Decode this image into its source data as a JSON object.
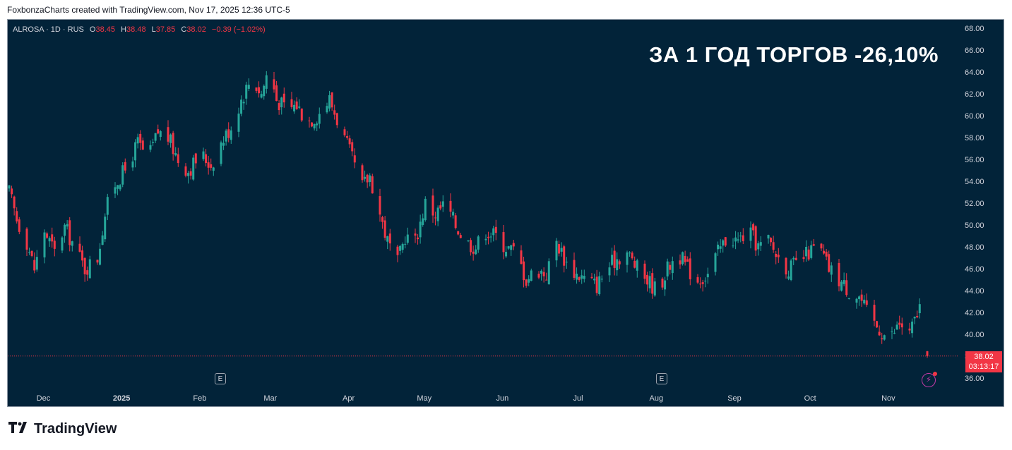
{
  "header": {
    "credit": "FoxbonzaCharts created with TradingView.com, Nov 17, 2025 12:36 UTC-5"
  },
  "legend": {
    "symbol": "ALROSA · 1D · RUS",
    "o_label": "O",
    "o_value": "38.45",
    "h_label": "H",
    "h_value": "38.48",
    "l_label": "L",
    "l_value": "37.85",
    "c_label": "C",
    "c_value": "38.02",
    "change": "−0.39 (−1.02%)"
  },
  "headline": "ЗА 1 ГОД ТОРГОВ -26,10%",
  "price_tag": {
    "price": "38.02",
    "countdown": "03:13:17"
  },
  "events": [
    {
      "label": "E",
      "near": "Mar"
    },
    {
      "label": "E",
      "near": "Aug"
    }
  ],
  "footer": {
    "brand": "TradingView"
  },
  "colors": {
    "up": "#26a69a",
    "down": "#f23645",
    "background": "#022339",
    "text": "#d1d4dc"
  },
  "chart_data": {
    "type": "candlestick",
    "x_ticks": [
      "Dec",
      "2025",
      "Feb",
      "Mar",
      "Apr",
      "May",
      "Jun",
      "Jul",
      "Aug",
      "Sep",
      "Oct",
      "Nov"
    ],
    "y_ticks": [
      "68.00",
      "66.00",
      "64.00",
      "62.00",
      "60.00",
      "58.00",
      "56.00",
      "54.00",
      "52.00",
      "50.00",
      "48.00",
      "46.00",
      "44.00",
      "42.00",
      "40.00",
      "38.00",
      "36.00"
    ],
    "ylim": [
      36,
      68
    ],
    "last_price": 38.02,
    "close_path": [
      [
        "2024-11-18",
        53.0
      ],
      [
        "2024-11-21",
        50.5
      ],
      [
        "2024-11-25",
        48.5
      ],
      [
        "2024-11-28",
        46.0
      ],
      [
        "2024-12-02",
        49.5
      ],
      [
        "2024-12-06",
        47.5
      ],
      [
        "2024-12-10",
        49.8
      ],
      [
        "2024-12-14",
        48.0
      ],
      [
        "2024-12-18",
        46.0
      ],
      [
        "2024-12-23",
        47.0
      ],
      [
        "2024-12-26",
        51.0
      ],
      [
        "2024-12-29",
        53.5
      ],
      [
        "2025-01-03",
        55.0
      ],
      [
        "2025-01-08",
        57.5
      ],
      [
        "2025-01-12",
        56.0
      ],
      [
        "2025-01-16",
        58.5
      ],
      [
        "2025-01-20",
        58.0
      ],
      [
        "2025-01-24",
        56.0
      ],
      [
        "2025-01-28",
        55.0
      ],
      [
        "2025-02-02",
        56.5
      ],
      [
        "2025-02-06",
        55.5
      ],
      [
        "2025-02-10",
        57.5
      ],
      [
        "2025-02-14",
        59.0
      ],
      [
        "2025-02-18",
        61.5
      ],
      [
        "2025-02-22",
        63.5
      ],
      [
        "2025-02-26",
        62.0
      ],
      [
        "2025-03-01",
        64.5
      ],
      [
        "2025-03-04",
        61.5
      ],
      [
        "2025-03-08",
        60.5
      ],
      [
        "2025-03-12",
        61.0
      ],
      [
        "2025-03-16",
        59.5
      ],
      [
        "2025-03-20",
        60.0
      ],
      [
        "2025-03-25",
        61.5
      ],
      [
        "2025-03-30",
        58.5
      ],
      [
        "2025-04-03",
        56.0
      ],
      [
        "2025-04-07",
        53.5
      ],
      [
        "2025-04-10",
        54.5
      ],
      [
        "2025-04-14",
        51.0
      ],
      [
        "2025-04-17",
        48.5
      ],
      [
        "2025-04-21",
        46.5
      ],
      [
        "2025-04-24",
        49.0
      ],
      [
        "2025-04-28",
        48.5
      ],
      [
        "2025-05-02",
        52.0
      ],
      [
        "2025-05-06",
        51.0
      ],
      [
        "2025-05-10",
        52.0
      ],
      [
        "2025-05-14",
        50.0
      ],
      [
        "2025-05-18",
        48.5
      ],
      [
        "2025-05-22",
        48.0
      ],
      [
        "2025-05-26",
        49.5
      ],
      [
        "2025-05-30",
        49.0
      ],
      [
        "2025-06-03",
        48.0
      ],
      [
        "2025-06-07",
        47.5
      ],
      [
        "2025-06-11",
        45.0
      ],
      [
        "2025-06-15",
        46.0
      ],
      [
        "2025-06-19",
        45.5
      ],
      [
        "2025-06-23",
        48.5
      ],
      [
        "2025-06-27",
        46.5
      ],
      [
        "2025-07-01",
        45.5
      ],
      [
        "2025-07-05",
        45.0
      ],
      [
        "2025-07-09",
        44.5
      ],
      [
        "2025-07-13",
        46.0
      ],
      [
        "2025-07-17",
        47.0
      ],
      [
        "2025-07-21",
        47.5
      ],
      [
        "2025-07-25",
        46.0
      ],
      [
        "2025-07-29",
        45.0
      ],
      [
        "2025-08-02",
        44.0
      ],
      [
        "2025-08-06",
        46.0
      ],
      [
        "2025-08-10",
        47.5
      ],
      [
        "2025-08-14",
        46.0
      ],
      [
        "2025-08-18",
        45.0
      ],
      [
        "2025-08-22",
        45.5
      ],
      [
        "2025-08-26",
        47.5
      ],
      [
        "2025-08-30",
        49.0
      ],
      [
        "2025-09-03",
        48.5
      ],
      [
        "2025-09-07",
        49.5
      ],
      [
        "2025-09-11",
        48.0
      ],
      [
        "2025-09-15",
        48.5
      ],
      [
        "2025-09-19",
        47.0
      ],
      [
        "2025-09-23",
        46.0
      ],
      [
        "2025-09-27",
        46.5
      ],
      [
        "2025-10-01",
        47.5
      ],
      [
        "2025-10-05",
        48.0
      ],
      [
        "2025-10-09",
        46.0
      ],
      [
        "2025-10-13",
        45.0
      ],
      [
        "2025-10-17",
        44.0
      ],
      [
        "2025-10-21",
        43.5
      ],
      [
        "2025-10-25",
        41.5
      ],
      [
        "2025-10-29",
        40.5
      ],
      [
        "2025-11-02",
        39.5
      ],
      [
        "2025-11-06",
        41.0
      ],
      [
        "2025-11-10",
        40.0
      ],
      [
        "2025-11-14",
        42.5
      ],
      [
        "2025-11-17",
        38.02
      ]
    ]
  }
}
